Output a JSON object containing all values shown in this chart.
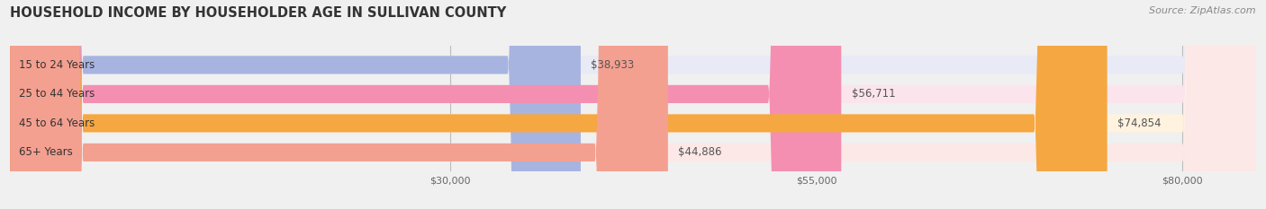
{
  "title": "HOUSEHOLD INCOME BY HOUSEHOLDER AGE IN SULLIVAN COUNTY",
  "source": "Source: ZipAtlas.com",
  "categories": [
    "15 to 24 Years",
    "25 to 44 Years",
    "45 to 64 Years",
    "65+ Years"
  ],
  "values": [
    38933,
    56711,
    74854,
    44886
  ],
  "bar_colors": [
    "#a8b4e0",
    "#f48fb1",
    "#f5a742",
    "#f4a090"
  ],
  "bar_bg_colors": [
    "#e8eaf6",
    "#fce4ec",
    "#fff3e0",
    "#fce8e6"
  ],
  "value_labels": [
    "$38,933",
    "$56,711",
    "$74,854",
    "$44,886"
  ],
  "x_ticks": [
    30000,
    55000,
    80000
  ],
  "x_tick_labels": [
    "$30,000",
    "$55,000",
    "$80,000"
  ],
  "x_min": 0,
  "x_max": 85000,
  "figsize": [
    14.06,
    2.33
  ],
  "dpi": 100,
  "bg_color": "#f0f0f0",
  "bar_height": 0.62,
  "title_fontsize": 10.5,
  "label_fontsize": 8.5,
  "tick_fontsize": 8.0,
  "source_fontsize": 8.0,
  "value_label_fontsize": 8.5
}
